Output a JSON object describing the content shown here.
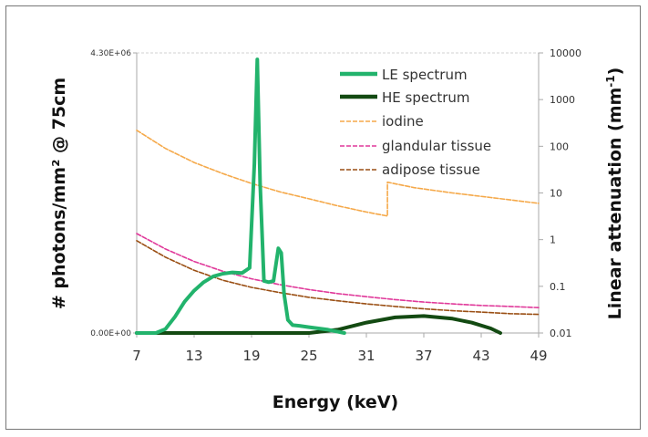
{
  "chart_data": {
    "type": "line",
    "xlabel": "Energy (keV)",
    "ylabel_left": "# photons/mm² @ 75cm",
    "ylabel_right": "Linear attenuation (mm-1)",
    "ylabel_right_base": "Linear attenuation (mm",
    "ylabel_right_sup": "-1",
    "ylabel_right_close": ")",
    "x_ticks": [
      "7",
      "13",
      "19",
      "25",
      "31",
      "37",
      "43",
      "49"
    ],
    "x_range": [
      7,
      49
    ],
    "y_left_ticks": [
      "4.30E+06",
      "0.00E+00"
    ],
    "y_left_range": [
      0,
      4300000
    ],
    "y_right_ticks": [
      "10000",
      "1000",
      "100",
      "10",
      "1",
      "0.1",
      "0.01"
    ],
    "y_right_range": [
      0.01,
      10000
    ],
    "y_right_scale": "log",
    "legend_position": "top-right",
    "colors": {
      "le": "#22b36c",
      "he": "#134a12",
      "iodine": "#f5a94a",
      "glandular": "#e0399a",
      "adipose": "#9a4f14"
    },
    "series": [
      {
        "name": "LE spectrum",
        "axis": "left",
        "x": [
          7,
          8,
          9,
          10,
          11,
          12,
          13,
          14,
          15,
          16,
          17,
          18,
          18.8,
          19.3,
          19.6,
          19.9,
          20.3,
          20.8,
          21.3,
          21.8,
          22.1,
          22.4,
          22.8,
          23.3,
          24,
          25,
          26,
          27,
          28,
          28.7
        ],
        "y": [
          0,
          0,
          0,
          60000,
          250000,
          480000,
          650000,
          780000,
          870000,
          910000,
          930000,
          920000,
          1000000,
          2600000,
          4200000,
          2300000,
          800000,
          780000,
          800000,
          1300000,
          1230000,
          600000,
          200000,
          120000,
          110000,
          90000,
          70000,
          50000,
          20000,
          0
        ]
      },
      {
        "name": "HE spectrum",
        "axis": "left",
        "x": [
          7,
          20,
          25,
          28,
          31,
          34,
          37,
          40,
          42,
          44,
          45
        ],
        "y": [
          0,
          0,
          0,
          50000,
          160000,
          240000,
          260000,
          220000,
          160000,
          70000,
          0
        ]
      },
      {
        "name": "iodine",
        "axis": "right",
        "x": [
          7,
          10,
          13,
          16,
          19,
          22,
          25,
          28,
          31,
          33.2,
          33.2,
          36,
          40,
          44,
          49
        ],
        "y": [
          220,
          90,
          45,
          26,
          16,
          10.5,
          7.5,
          5.3,
          3.9,
          3.2,
          17,
          13,
          10,
          8,
          6
        ]
      },
      {
        "name": "glandular tissue",
        "axis": "right",
        "x": [
          7,
          10,
          13,
          16,
          19,
          22,
          25,
          28,
          31,
          34,
          37,
          40,
          43,
          46,
          49
        ],
        "y": [
          1.35,
          0.63,
          0.34,
          0.21,
          0.145,
          0.108,
          0.085,
          0.07,
          0.06,
          0.052,
          0.046,
          0.042,
          0.039,
          0.037,
          0.035
        ]
      },
      {
        "name": "adipose tissue",
        "axis": "right",
        "x": [
          7,
          10,
          13,
          16,
          19,
          22,
          25,
          28,
          31,
          34,
          37,
          40,
          43,
          46,
          49
        ],
        "y": [
          0.95,
          0.42,
          0.22,
          0.135,
          0.095,
          0.073,
          0.058,
          0.049,
          0.042,
          0.037,
          0.033,
          0.03,
          0.028,
          0.026,
          0.025
        ]
      }
    ]
  }
}
